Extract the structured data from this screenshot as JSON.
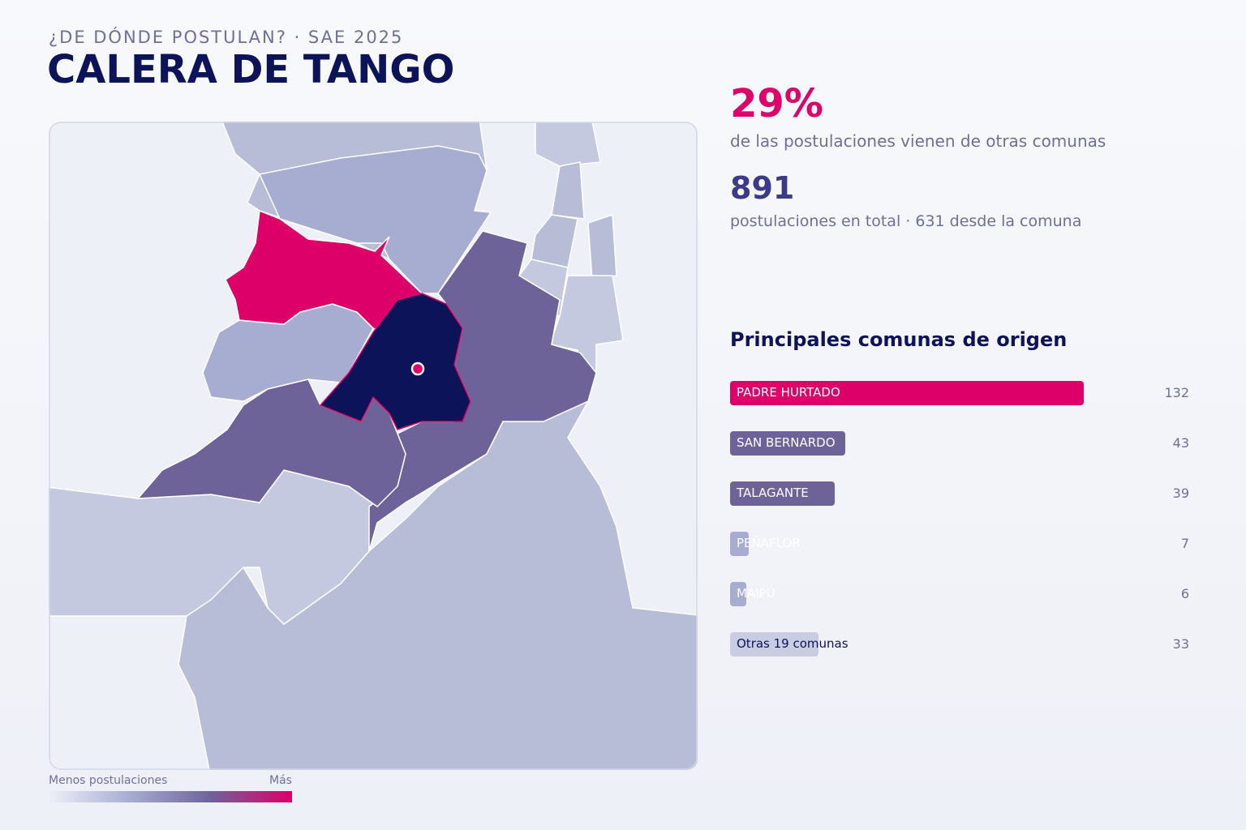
{
  "header": {
    "kicker": "¿DE DÓNDE POSTULAN? · SAE 2025",
    "title": "CALERA DE TANGO"
  },
  "stats": [
    {
      "value": "29%",
      "caption": "de las postulaciones vienen de otras comunas"
    },
    {
      "value": "891",
      "caption": "postulaciones en total · 631 desde la comuna"
    }
  ],
  "ranking": {
    "title": "Principales comunas de origen",
    "rows": [
      {
        "name": "PADRE HURTADO",
        "value": 132,
        "color": "#dc0068"
      },
      {
        "name": "SAN BERNARDO",
        "value": 43,
        "color": "#6e6399"
      },
      {
        "name": "TALAGANTE",
        "value": 39,
        "color": "#6e6399"
      },
      {
        "name": "PEÑAFLOR",
        "value": 7,
        "color": "#a7add0"
      },
      {
        "name": "MAIPÚ",
        "value": 6,
        "color": "#a7add0"
      },
      {
        "name": "Otras 19 comunas",
        "value": 33,
        "color": "#c9cde2"
      }
    ]
  },
  "legend": {
    "low": "Menos postulaciones",
    "high": "Más"
  }
}
